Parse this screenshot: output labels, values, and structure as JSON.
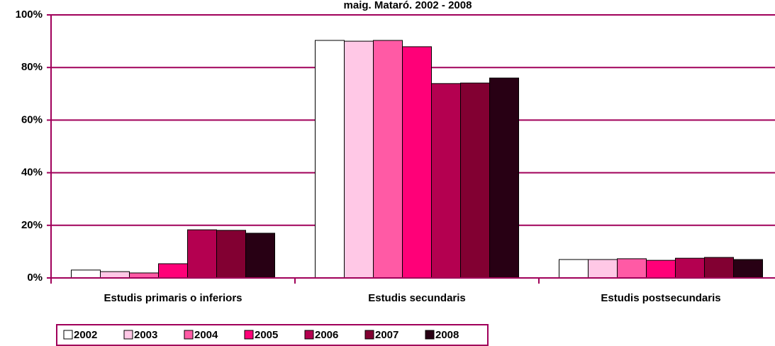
{
  "chart_data": {
    "type": "bar",
    "title": "maig. Mataró. 2002 - 2008",
    "categories": [
      "Estudis primaris o inferiors",
      "Estudis secundaris",
      "Estudis postsecundaris"
    ],
    "series": [
      {
        "name": "2002",
        "color": "#ffffff",
        "values": [
          3.0,
          90.3,
          7.0
        ]
      },
      {
        "name": "2003",
        "color": "#ffc8e6",
        "values": [
          2.4,
          90.0,
          7.0
        ]
      },
      {
        "name": "2004",
        "color": "#ff5aa5",
        "values": [
          1.9,
          90.3,
          7.3
        ]
      },
      {
        "name": "2005",
        "color": "#ff0078",
        "values": [
          5.4,
          87.9,
          6.7
        ]
      },
      {
        "name": "2006",
        "color": "#b40050",
        "values": [
          18.3,
          73.9,
          7.5
        ]
      },
      {
        "name": "2007",
        "color": "#820032",
        "values": [
          18.1,
          74.1,
          7.8
        ]
      },
      {
        "name": "2008",
        "color": "#280014",
        "values": [
          17.0,
          76.0,
          7.0
        ]
      }
    ],
    "ylim": [
      0,
      100
    ],
    "yticks": [
      {
        "value": 0,
        "label": "0%"
      },
      {
        "value": 20,
        "label": "20%"
      },
      {
        "value": 40,
        "label": "40%"
      },
      {
        "value": 60,
        "label": "60%"
      },
      {
        "value": 80,
        "label": "80%"
      },
      {
        "value": 100,
        "label": "100%"
      }
    ],
    "grid": true
  }
}
